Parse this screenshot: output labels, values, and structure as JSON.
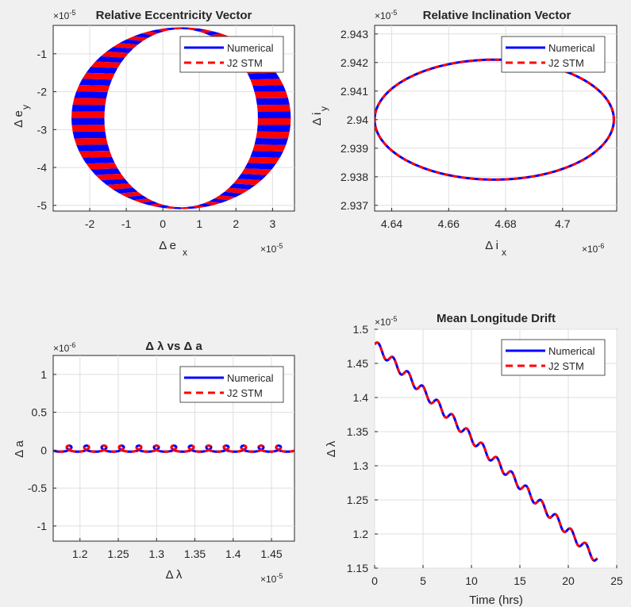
{
  "figure": {
    "background": "#f0f0f0",
    "series_colors": {
      "numerical": "#0000ff",
      "stm": "#ff0000"
    }
  },
  "chart_data": [
    {
      "type": "line",
      "title": "Relative Eccentricity Vector",
      "xlabel": "Δ eₓ",
      "ylabel": "Δ eᵧ",
      "xlabel_main": "Δ e",
      "xlabel_sub": "x",
      "ylabel_main": "Δ e",
      "ylabel_sub": "y",
      "x_exponent": "×10",
      "x_exponent_power": "-5",
      "y_exponent": "×10",
      "y_exponent_power": "-5",
      "xlim": [
        -3,
        3.6
      ],
      "ylim": [
        -5.15,
        -0.25
      ],
      "xticks": [
        -2,
        -1,
        0,
        1,
        2,
        3
      ],
      "xtick_labels": [
        "-2",
        "-1",
        "0",
        "1",
        "2",
        "3"
      ],
      "yticks": [
        -5,
        -4,
        -3,
        -2,
        -1
      ],
      "ytick_labels": [
        "-5",
        "-4",
        "-3",
        "-2",
        "-1"
      ],
      "grid": true,
      "legend_position": "top-right",
      "ellipse_center": [
        0.5,
        -2.7
      ],
      "inner_radius": [
        2.1,
        2.35
      ],
      "outer_radius": [
        3.0,
        2.4
      ],
      "series": [
        {
          "name": "Numerical",
          "color": "#0000ff",
          "style": "solid"
        },
        {
          "name": "J2 STM",
          "color": "#ff0000",
          "style": "dashed"
        }
      ]
    },
    {
      "type": "line",
      "title": "Relative Inclination Vector",
      "xlabel": "Δ iₓ",
      "ylabel": "Δ iᵧ",
      "xlabel_main": "Δ i",
      "xlabel_sub": "x",
      "ylabel_main": "Δ i",
      "ylabel_sub": "y",
      "x_exponent": "×10",
      "x_exponent_power": "-6",
      "y_exponent": "×10",
      "y_exponent_power": "-5",
      "xlim": [
        4.634,
        4.719
      ],
      "ylim": [
        2.9368,
        2.9433
      ],
      "xticks": [
        4.64,
        4.66,
        4.68,
        4.7
      ],
      "xtick_labels": [
        "4.64",
        "4.66",
        "4.68",
        "4.7"
      ],
      "yticks": [
        2.937,
        2.938,
        2.939,
        2.94,
        2.941,
        2.942,
        2.943
      ],
      "ytick_labels": [
        "2.937",
        "2.938",
        "2.939",
        "2.94",
        "2.941",
        "2.942",
        "2.943"
      ],
      "grid": true,
      "legend_position": "top-right",
      "ellipse_center": [
        4.676,
        2.94
      ],
      "ellipse_radius": [
        0.042,
        0.0021
      ],
      "series": [
        {
          "name": "Numerical",
          "color": "#0000ff",
          "style": "solid"
        },
        {
          "name": "J2 STM",
          "color": "#ff0000",
          "style": "dashed"
        }
      ]
    },
    {
      "type": "line",
      "title": "Δ λ vs Δ a",
      "xlabel": "Δ λ",
      "ylabel": "Δ a",
      "x_exponent": "×10",
      "x_exponent_power": "-5",
      "y_exponent": "×10",
      "y_exponent_power": "-6",
      "xlim": [
        1.165,
        1.48
      ],
      "ylim": [
        -1.2,
        1.25
      ],
      "xticks": [
        1.2,
        1.25,
        1.3,
        1.35,
        1.4,
        1.45
      ],
      "xtick_labels": [
        "1.2",
        "1.25",
        "1.3",
        "1.35",
        "1.4",
        "1.45"
      ],
      "yticks": [
        -1,
        -0.5,
        0,
        0.5,
        1
      ],
      "ytick_labels": [
        "-1",
        "-0.5",
        "0",
        "0.5",
        "1"
      ],
      "grid": true,
      "legend_position": "top-right",
      "loop_count": 14,
      "series": [
        {
          "name": "Numerical",
          "color": "#0000ff",
          "style": "solid"
        },
        {
          "name": "J2 STM",
          "color": "#ff0000",
          "style": "dashed"
        }
      ]
    },
    {
      "type": "line",
      "title": "Mean Longitude Drift",
      "xlabel": "Time (hrs)",
      "ylabel": "Δ λ",
      "y_exponent": "×10",
      "y_exponent_power": "-5",
      "xlim": [
        0,
        25
      ],
      "ylim": [
        1.15,
        1.5
      ],
      "xticks": [
        0,
        5,
        10,
        15,
        20,
        25
      ],
      "xtick_labels": [
        "0",
        "5",
        "10",
        "15",
        "20",
        "25"
      ],
      "yticks": [
        1.15,
        1.2,
        1.25,
        1.3,
        1.35,
        1.4,
        1.45,
        1.5
      ],
      "ytick_labels": [
        "1.15",
        "1.2",
        "1.25",
        "1.3",
        "1.35",
        "1.4",
        "1.45",
        "1.5"
      ],
      "grid": true,
      "legend_position": "top-right",
      "drift": {
        "start": [
          0,
          1.478
        ],
        "end": [
          23,
          1.163
        ],
        "oscillation_period_hrs": 1.53,
        "oscillation_amplitude": 0.007
      },
      "series": [
        {
          "name": "Numerical",
          "color": "#0000ff",
          "style": "solid"
        },
        {
          "name": "J2 STM",
          "color": "#ff0000",
          "style": "dashed"
        }
      ]
    }
  ]
}
